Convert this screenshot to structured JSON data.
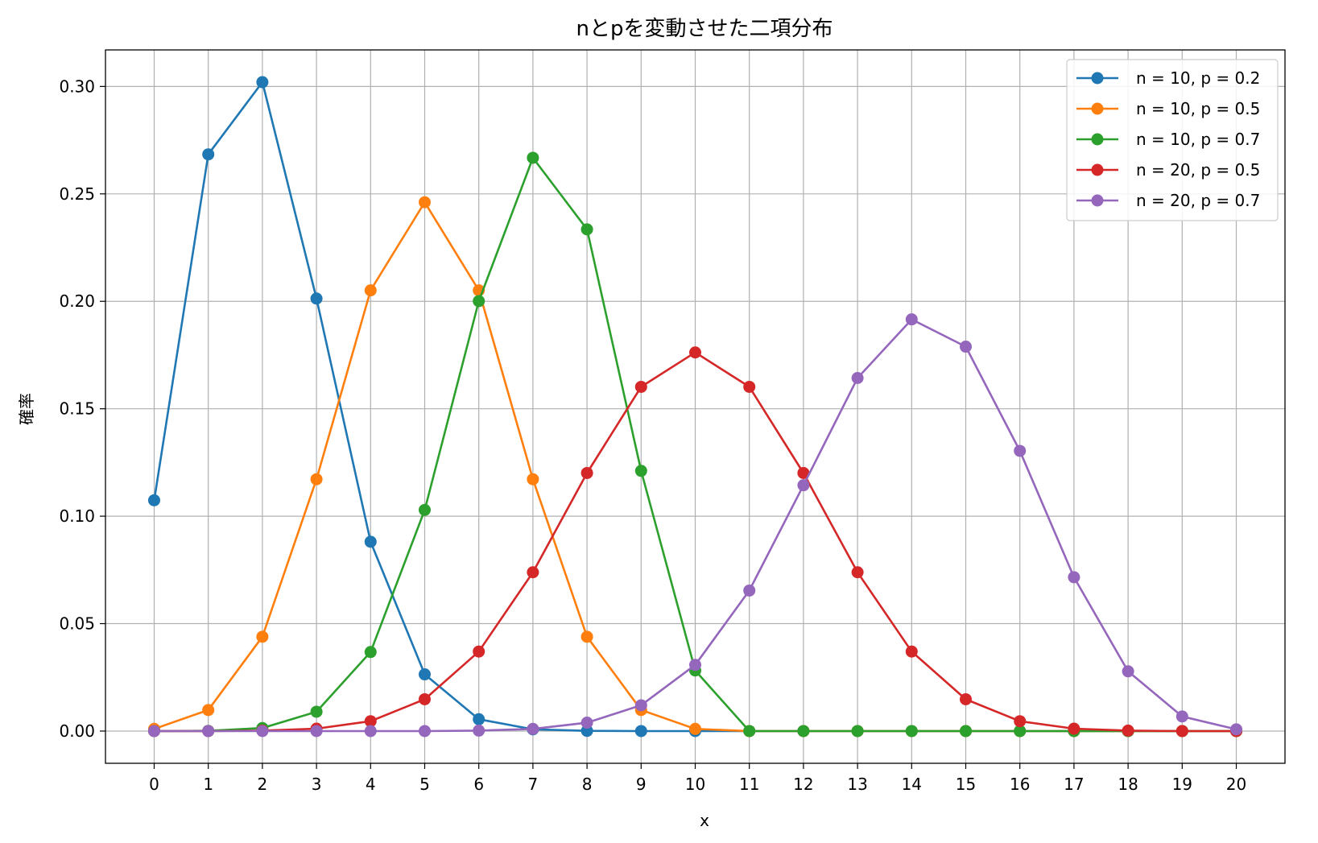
{
  "chart_data": {
    "type": "line",
    "title": "nとpを変動させた二項分布",
    "xlabel": "x",
    "ylabel": "確率",
    "xlim": [
      -0.9,
      20.9
    ],
    "ylim": [
      -0.015,
      0.317
    ],
    "xticks": [
      0,
      1,
      2,
      3,
      4,
      5,
      6,
      7,
      8,
      9,
      10,
      11,
      12,
      13,
      14,
      15,
      16,
      17,
      18,
      19,
      20
    ],
    "yticks": [
      0.0,
      0.05,
      0.1,
      0.15,
      0.2,
      0.25,
      0.3
    ],
    "ytick_labels": [
      "0.00",
      "0.05",
      "0.10",
      "0.15",
      "0.20",
      "0.25",
      "0.30"
    ],
    "grid": true,
    "legend_position": "top-right",
    "x": [
      0,
      1,
      2,
      3,
      4,
      5,
      6,
      7,
      8,
      9,
      10,
      11,
      12,
      13,
      14,
      15,
      16,
      17,
      18,
      19,
      20
    ],
    "series": [
      {
        "name": "n = 10, p = 0.2",
        "color": "#1f77b4",
        "values": [
          0.1074,
          0.2684,
          0.302,
          0.2013,
          0.0881,
          0.0264,
          0.0055,
          0.0008,
          0.0001,
          0.0,
          0.0,
          0,
          0,
          0,
          0,
          0,
          0,
          0,
          0,
          0,
          0
        ]
      },
      {
        "name": "n = 10, p = 0.5",
        "color": "#ff7f0e",
        "values": [
          0.001,
          0.0098,
          0.0439,
          0.1172,
          0.2051,
          0.2461,
          0.2051,
          0.1172,
          0.0439,
          0.0098,
          0.001,
          0,
          0,
          0,
          0,
          0,
          0,
          0,
          0,
          0,
          0
        ]
      },
      {
        "name": "n = 10, p = 0.7",
        "color": "#2ca02c",
        "values": [
          0.0,
          0.0001,
          0.0014,
          0.009,
          0.0368,
          0.1029,
          0.2001,
          0.2668,
          0.2335,
          0.1211,
          0.0282,
          0,
          0,
          0,
          0,
          0,
          0,
          0,
          0,
          0,
          0
        ]
      },
      {
        "name": "n = 20, p = 0.5",
        "color": "#d62728",
        "values": [
          0.0,
          0.0,
          0.0002,
          0.0011,
          0.0046,
          0.0148,
          0.037,
          0.0739,
          0.1201,
          0.1602,
          0.1762,
          0.1602,
          0.1201,
          0.0739,
          0.037,
          0.0148,
          0.0046,
          0.0011,
          0.0002,
          0.0,
          0.0
        ]
      },
      {
        "name": "n = 20, p = 0.7",
        "color": "#9467bd",
        "values": [
          0.0,
          0.0,
          0.0,
          0.0,
          0.0,
          0.0,
          0.0002,
          0.001,
          0.0039,
          0.012,
          0.0308,
          0.0654,
          0.1144,
          0.1643,
          0.1916,
          0.1789,
          0.1304,
          0.0716,
          0.0278,
          0.0068,
          0.0008
        ]
      }
    ]
  }
}
